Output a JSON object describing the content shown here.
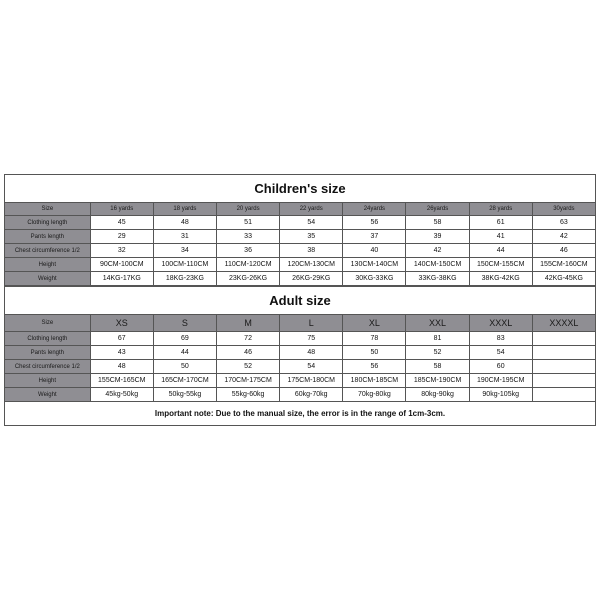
{
  "children": {
    "title": "Children's size",
    "title_fontsize": 13,
    "label_col_width_pct": 14.5,
    "header_font_size": 6,
    "label_font_size": 6,
    "data_font_size": 7,
    "colors": {
      "header_bg": "#8f8e93",
      "label_bg": "#8f8e93",
      "border": "#555555",
      "data_bg": "#ffffff",
      "text": "#111111"
    },
    "columns": [
      "Size",
      "16 yards",
      "18 yards",
      "20 yards",
      "22 yards",
      "24yards",
      "26yards",
      "28 yards",
      "30yards"
    ],
    "rows": [
      {
        "label": "Clothing length",
        "values": [
          "45",
          "48",
          "51",
          "54",
          "56",
          "58",
          "61",
          "63"
        ]
      },
      {
        "label": "Pants length",
        "values": [
          "29",
          "31",
          "33",
          "35",
          "37",
          "39",
          "41",
          "42"
        ]
      },
      {
        "label": "Chest circumference 1/2",
        "values": [
          "32",
          "34",
          "36",
          "38",
          "40",
          "42",
          "44",
          "46"
        ]
      },
      {
        "label": "Height",
        "values": [
          "90CM-100CM",
          "100CM-110CM",
          "110CM-120CM",
          "120CM-130CM",
          "130CM-140CM",
          "140CM-150CM",
          "150CM-155CM",
          "155CM-160CM"
        ]
      },
      {
        "label": "Weight",
        "values": [
          "14KG-17KG",
          "18KG-23KG",
          "23KG-26KG",
          "26KG-29KG",
          "30KG-33KG",
          "33KG-38KG",
          "38KG-42KG",
          "42KG-45KG"
        ]
      }
    ]
  },
  "adult": {
    "title": "Adult size",
    "title_fontsize": 13,
    "label_col_width_pct": 14.5,
    "header_font_size": 9,
    "label_font_size": 6,
    "data_font_size": 7,
    "colors": {
      "header_bg": "#8f8e93",
      "label_bg": "#8f8e93",
      "border": "#555555",
      "data_bg": "#ffffff",
      "text": "#111111"
    },
    "columns": [
      "Size",
      "XS",
      "S",
      "M",
      "L",
      "XL",
      "XXL",
      "XXXL",
      "XXXXL"
    ],
    "rows": [
      {
        "label": "Clothing length",
        "values": [
          "67",
          "69",
          "72",
          "75",
          "78",
          "81",
          "83",
          ""
        ]
      },
      {
        "label": "Pants length",
        "values": [
          "43",
          "44",
          "46",
          "48",
          "50",
          "52",
          "54",
          ""
        ]
      },
      {
        "label": "Chest circumference 1/2",
        "values": [
          "48",
          "50",
          "52",
          "54",
          "56",
          "58",
          "60",
          ""
        ]
      },
      {
        "label": "Height",
        "values": [
          "155CM-165CM",
          "165CM-170CM",
          "170CM-175CM",
          "175CM-180CM",
          "180CM-185CM",
          "185CM-190CM",
          "190CM-195CM",
          ""
        ]
      },
      {
        "label": "Weight",
        "values": [
          "45kg-50kg",
          "50kg-55kg",
          "55kg-60kg",
          "60kg-70kg",
          "70kg-80kg",
          "80kg-90kg",
          "90kg-105kg",
          ""
        ]
      }
    ],
    "note": "Important note: Due to the manual size, the error is in the range of 1cm-3cm.",
    "note_fontsize": 8
  }
}
